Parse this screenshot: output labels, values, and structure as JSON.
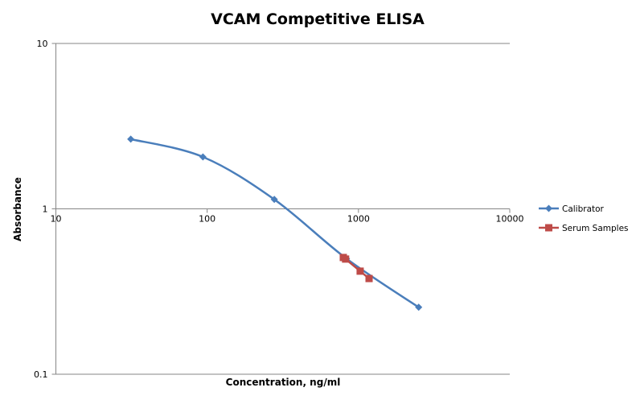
{
  "chart_data": {
    "type": "scatter",
    "title": "VCAM Competitive ELISA",
    "xlabel": "Concentration, ng/ml",
    "ylabel": "Absorbance",
    "xscale": "log",
    "yscale": "log",
    "xlim": [
      10,
      10000
    ],
    "ylim": [
      0.1,
      10
    ],
    "xticks": [
      "10",
      "100",
      "1000",
      "10000"
    ],
    "yticks": [
      "0.1",
      "1",
      "10"
    ],
    "grid": false,
    "legend_position": "right",
    "series": [
      {
        "name": "Calibrator",
        "color": "#4a7ebb",
        "marker": "diamond",
        "smooth": true,
        "x": [
          31.25,
          93.75,
          277.8,
          833,
          2500
        ],
        "y": [
          2.64,
          2.06,
          1.14,
          0.5,
          0.254
        ]
      },
      {
        "name": "Serum Samples",
        "color": "#be4b48",
        "marker": "square",
        "smooth": false,
        "x": [
          794,
          822,
          1026,
          1175
        ],
        "y": [
          0.508,
          0.497,
          0.42,
          0.379
        ]
      }
    ]
  }
}
